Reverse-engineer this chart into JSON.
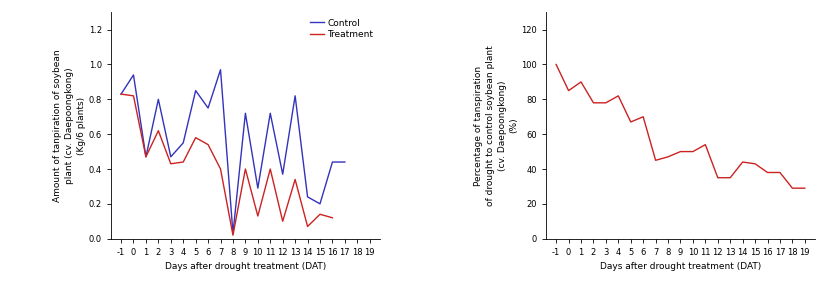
{
  "days": [
    -1,
    0,
    1,
    2,
    3,
    4,
    5,
    6,
    7,
    8,
    9,
    10,
    11,
    12,
    13,
    14,
    15,
    16,
    17,
    18,
    19
  ],
  "control": [
    0.83,
    0.94,
    0.47,
    0.8,
    0.47,
    0.55,
    0.85,
    0.75,
    0.97,
    0.03,
    0.72,
    0.29,
    0.72,
    0.37,
    0.82,
    0.24,
    0.2,
    0.44,
    0.44,
    null,
    null
  ],
  "treatment": [
    0.83,
    0.82,
    0.47,
    0.62,
    0.43,
    0.44,
    0.58,
    0.54,
    0.4,
    0.02,
    0.4,
    0.13,
    0.4,
    0.1,
    0.34,
    0.07,
    0.14,
    0.12,
    null,
    null,
    null
  ],
  "left_ylabel": "Amount of tanpiration of soybean\nplant (cv. Daepoongkong)\n(Kg/6 plants)",
  "left_xlabel": "Days after drought treatment (DAT)",
  "left_ylim": [
    0,
    1.3
  ],
  "left_yticks": [
    0,
    0.2,
    0.4,
    0.6,
    0.8,
    1.0,
    1.2
  ],
  "control_color": "#3333bb",
  "treatment_color": "#cc2222",
  "legend_control": "Control",
  "legend_treatment": "Treatment",
  "right_days": [
    -1,
    0,
    1,
    2,
    3,
    4,
    5,
    6,
    7,
    8,
    9,
    10,
    11,
    12,
    13,
    14,
    15,
    16,
    17,
    18,
    19
  ],
  "right_values": [
    100,
    85,
    90,
    78,
    78,
    82,
    67,
    70,
    45,
    47,
    50,
    50,
    54,
    35,
    35,
    44,
    43,
    38,
    38,
    29,
    29
  ],
  "right_ylabel": "Percentage of tanspiration\nof drought to control soybean plant\n(cv. Daepoongkong)\n(%)",
  "right_xlabel": "Days after drought treatment (DAT)",
  "right_ylim": [
    0,
    130
  ],
  "right_yticks": [
    0,
    20,
    40,
    60,
    80,
    100,
    120
  ],
  "label_fontsize": 6.5,
  "tick_fontsize": 6.0,
  "line_width": 1.0
}
